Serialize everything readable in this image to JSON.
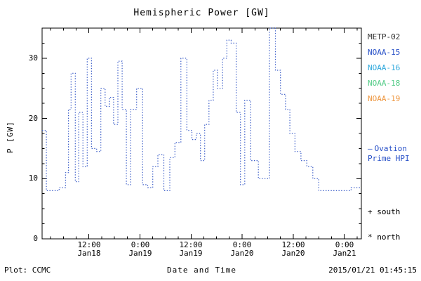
{
  "chart_data": {
    "type": "line",
    "style": "step-dotted",
    "title": "Hemispheric Power [GW]",
    "xlabel": "Date and Time",
    "ylabel": "P [GW]",
    "ylim": [
      0,
      35
    ],
    "yticks": [
      0,
      10,
      20,
      30
    ],
    "ytick_labels": [
      "0",
      "10",
      "20",
      "30"
    ],
    "y_minor_step": 2.5,
    "xlim_hours": [
      1,
      76
    ],
    "x_unit_note": "hours from Jan18 00:00",
    "x_minor_step_hours": 3,
    "xticks": [
      {
        "hour": 12,
        "time": "12:00",
        "date": "Jan18"
      },
      {
        "hour": 24,
        "time": "0:00",
        "date": "Jan19"
      },
      {
        "hour": 36,
        "time": "12:00",
        "date": "Jan19"
      },
      {
        "hour": 48,
        "time": "0:00",
        "date": "Jan20"
      },
      {
        "hour": 60,
        "time": "12:00",
        "date": "Jan20"
      },
      {
        "hour": 72,
        "time": "0:00",
        "date": "Jan21"
      }
    ],
    "line_color": "#3a5cc8",
    "series": [
      {
        "name": "Ovation Prime HPI",
        "points": [
          [
            1,
            18
          ],
          [
            2,
            8
          ],
          [
            5,
            8.5
          ],
          [
            6.5,
            11
          ],
          [
            7.2,
            21.5
          ],
          [
            7.8,
            27.5
          ],
          [
            8.8,
            9.5
          ],
          [
            9.6,
            21
          ],
          [
            10.6,
            12
          ],
          [
            11.6,
            30
          ],
          [
            12.6,
            15
          ],
          [
            13.8,
            14.5
          ],
          [
            14.8,
            25
          ],
          [
            15.8,
            22
          ],
          [
            16.8,
            23.5
          ],
          [
            17.8,
            19
          ],
          [
            18.8,
            29.5
          ],
          [
            19.8,
            21.5
          ],
          [
            20.8,
            9
          ],
          [
            21.8,
            21.5
          ],
          [
            23.2,
            25
          ],
          [
            24.6,
            9
          ],
          [
            25.8,
            8.5
          ],
          [
            27,
            12
          ],
          [
            28.2,
            14
          ],
          [
            29.6,
            8
          ],
          [
            31,
            13.5
          ],
          [
            32.2,
            16
          ],
          [
            33.6,
            30
          ],
          [
            35,
            18
          ],
          [
            36.2,
            16.5
          ],
          [
            37.2,
            17.5
          ],
          [
            38.2,
            13
          ],
          [
            39.2,
            19
          ],
          [
            40.2,
            23
          ],
          [
            41.2,
            28
          ],
          [
            42.2,
            25
          ],
          [
            43.4,
            30
          ],
          [
            44.4,
            33
          ],
          [
            45.4,
            32.5
          ],
          [
            46.6,
            21
          ],
          [
            47.6,
            9
          ],
          [
            48.6,
            23
          ],
          [
            50,
            13
          ],
          [
            51.8,
            10
          ],
          [
            54.4,
            35
          ],
          [
            55.8,
            28
          ],
          [
            57,
            24
          ],
          [
            58.2,
            21.5
          ],
          [
            59.2,
            17.5
          ],
          [
            60.4,
            14.5
          ],
          [
            61.8,
            13
          ],
          [
            63.2,
            12
          ],
          [
            64.6,
            10
          ],
          [
            66,
            8
          ],
          [
            72,
            8
          ],
          [
            73.6,
            8.5
          ]
        ]
      }
    ]
  },
  "legend": {
    "satellites": [
      {
        "label": "METP-02",
        "color": "#333333"
      },
      {
        "label": "NOAA-15",
        "color": "#2a52c8"
      },
      {
        "label": "NOAA-16",
        "color": "#33aadd"
      },
      {
        "label": "NOAA-18",
        "color": "#55cc88"
      },
      {
        "label": "NOAA-19",
        "color": "#ee9944"
      }
    ],
    "ovation": {
      "marker": "—",
      "line1": "Ovation",
      "line2": "Prime HPI",
      "color": "#2a52c8"
    },
    "south": "+ south",
    "north": "* north"
  },
  "footer": {
    "plot_credit": "Plot: CCMC",
    "timestamp": "2015/01/21 01:45:15"
  }
}
